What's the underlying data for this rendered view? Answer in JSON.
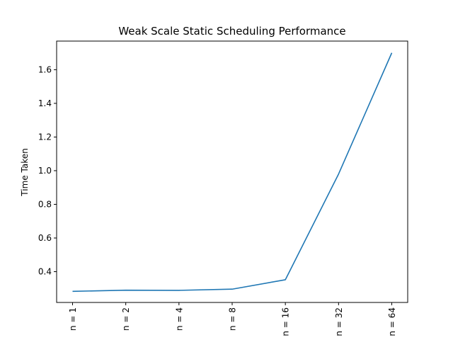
{
  "chart_data": {
    "type": "line",
    "title": "Weak Scale Static Scheduling Performance",
    "xlabel": "",
    "ylabel": "Time Taken",
    "categories": [
      "n = 1",
      "n = 2",
      "n = 4",
      "n = 8",
      "n = 16",
      "n = 32",
      "n = 64"
    ],
    "series": [
      {
        "values": [
          0.283,
          0.29,
          0.289,
          0.296,
          0.352,
          0.98,
          1.7
        ],
        "color": "#1f77b4"
      }
    ],
    "ylim": [
      0.217,
      1.77
    ],
    "yticks": [
      0.4,
      0.6,
      0.8,
      1.0,
      1.2,
      1.4,
      1.6
    ],
    "ytick_labels": [
      "0.4",
      "0.6",
      "0.8",
      "1.0",
      "1.2",
      "1.4",
      "1.6"
    ],
    "xtick_rotation": "vertical",
    "grid": false,
    "legend": "none"
  }
}
